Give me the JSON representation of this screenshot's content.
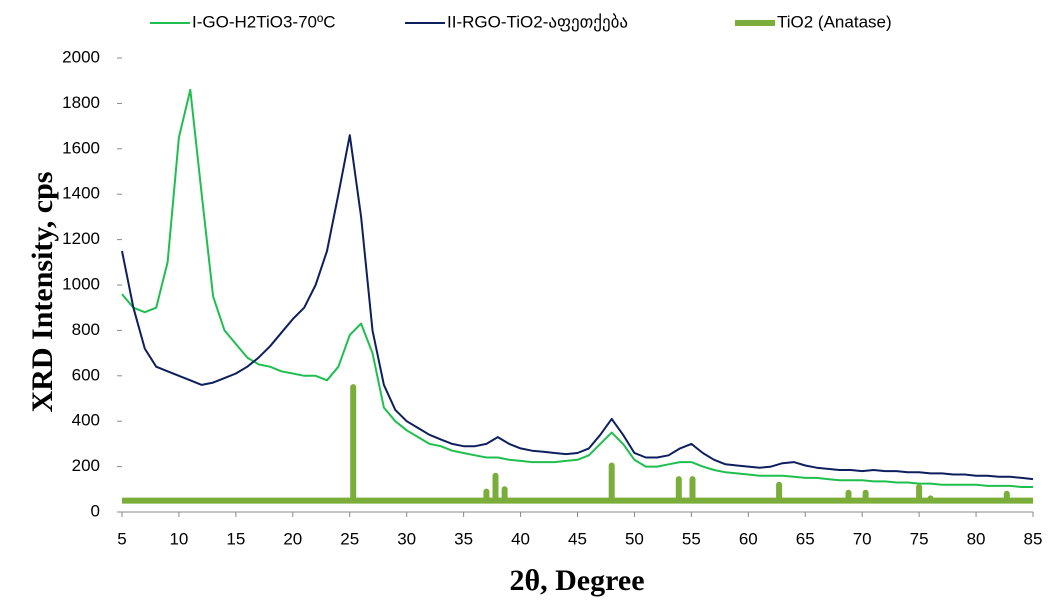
{
  "chart_data": {
    "type": "line",
    "x_label": "2θ, Degree",
    "y_label": "XRD Intensity, cps",
    "x": [
      5,
      6,
      7,
      8,
      9,
      10,
      11,
      12,
      13,
      14,
      15,
      16,
      17,
      18,
      19,
      20,
      21,
      22,
      23,
      24,
      25,
      26,
      27,
      28,
      29,
      30,
      31,
      32,
      33,
      34,
      35,
      36,
      37,
      38,
      39,
      40,
      41,
      42,
      43,
      44,
      45,
      46,
      47,
      48,
      49,
      50,
      51,
      52,
      53,
      54,
      55,
      56,
      57,
      58,
      59,
      60,
      61,
      62,
      63,
      64,
      65,
      66,
      67,
      68,
      69,
      70,
      71,
      72,
      73,
      74,
      75,
      76,
      77,
      78,
      79,
      80,
      81,
      82,
      83,
      84,
      85
    ],
    "series": [
      {
        "name": "I-GO-H2TiO3-70ºC",
        "color": "#1fbf4f",
        "width": 2,
        "values": [
          960,
          900,
          880,
          900,
          1100,
          1650,
          1860,
          1400,
          950,
          800,
          740,
          680,
          650,
          640,
          620,
          610,
          600,
          600,
          580,
          640,
          780,
          830,
          700,
          460,
          400,
          360,
          330,
          300,
          290,
          270,
          260,
          250,
          240,
          240,
          230,
          225,
          220,
          220,
          220,
          225,
          230,
          250,
          300,
          350,
          300,
          230,
          200,
          200,
          210,
          220,
          220,
          200,
          185,
          175,
          170,
          165,
          160,
          160,
          160,
          155,
          150,
          150,
          145,
          140,
          140,
          140,
          135,
          135,
          130,
          130,
          125,
          125,
          120,
          120,
          120,
          120,
          115,
          115,
          115,
          110,
          110
        ]
      },
      {
        "name": "II-RGO-TiO2-აფეთქება",
        "color": "#0d1f5c",
        "width": 2,
        "values": [
          1150,
          900,
          720,
          640,
          620,
          600,
          580,
          560,
          570,
          590,
          610,
          640,
          680,
          730,
          790,
          850,
          900,
          1000,
          1150,
          1400,
          1660,
          1300,
          800,
          560,
          450,
          400,
          370,
          340,
          320,
          300,
          290,
          290,
          300,
          330,
          300,
          280,
          270,
          265,
          260,
          255,
          260,
          280,
          340,
          410,
          340,
          260,
          240,
          240,
          250,
          280,
          300,
          260,
          230,
          210,
          205,
          200,
          195,
          200,
          215,
          220,
          205,
          195,
          190,
          185,
          185,
          180,
          185,
          180,
          180,
          175,
          175,
          170,
          170,
          165,
          165,
          160,
          160,
          155,
          155,
          150,
          145
        ]
      },
      {
        "name": "TiO2 (Anatase)",
        "color": "#7aad3a",
        "width": 6,
        "x": [
          5,
          25.3,
          25.3,
          25.3,
          37.0,
          37.0,
          37.0,
          37.8,
          37.8,
          37.8,
          38.6,
          38.6,
          38.6,
          48.0,
          48.0,
          48.0,
          53.9,
          53.9,
          53.9,
          55.1,
          55.1,
          55.1,
          62.7,
          62.7,
          62.7,
          68.8,
          68.8,
          68.8,
          70.3,
          70.3,
          70.3,
          75.0,
          75.0,
          75.0,
          76.0,
          76.0,
          76.0,
          82.7,
          82.7,
          82.7,
          85
        ],
        "values": [
          50,
          50,
          550,
          50,
          50,
          90,
          50,
          50,
          160,
          50,
          50,
          100,
          50,
          50,
          205,
          50,
          50,
          145,
          50,
          50,
          145,
          50,
          50,
          120,
          50,
          50,
          85,
          50,
          50,
          85,
          50,
          50,
          110,
          50,
          50,
          60,
          50,
          50,
          80,
          50,
          50
        ]
      }
    ],
    "xlim": [
      5,
      85
    ],
    "xticks": [
      5,
      10,
      15,
      20,
      25,
      30,
      35,
      40,
      45,
      50,
      55,
      60,
      65,
      70,
      75,
      80,
      85
    ],
    "ylim": [
      0,
      2000
    ],
    "yticks": [
      0,
      200,
      400,
      600,
      800,
      1000,
      1200,
      1400,
      1600,
      1800,
      2000
    ]
  }
}
